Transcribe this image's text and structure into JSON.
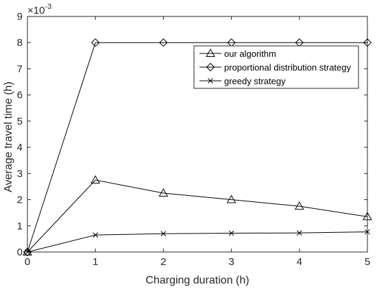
{
  "chart_data": {
    "type": "line",
    "title": "",
    "xlabel": "Charging duration (h)",
    "ylabel": "Average travel time (h)",
    "y_exponent_label": "×10",
    "y_exponent_power": "-3",
    "xlim": [
      0,
      5
    ],
    "ylim": [
      0,
      9
    ],
    "y_scale_factor": 0.001,
    "grid": false,
    "legend_position": "top-right",
    "x_ticks": [
      "0",
      "1",
      "2",
      "3",
      "4",
      "5"
    ],
    "y_ticks": [
      "0",
      "1",
      "2",
      "3",
      "4",
      "5",
      "6",
      "7",
      "8",
      "9"
    ],
    "x": [
      0,
      1,
      2,
      3,
      4,
      5
    ],
    "series": [
      {
        "name": "our algorithm",
        "marker": "triangle",
        "values": [
          0.0,
          2.75,
          2.25,
          2.0,
          1.75,
          1.35
        ]
      },
      {
        "name": "proportional distribution strategy",
        "marker": "diamond",
        "values": [
          0.0,
          8.0,
          8.0,
          8.0,
          8.0,
          8.0
        ]
      },
      {
        "name": "greedy strategy",
        "marker": "x",
        "values": [
          0.0,
          0.65,
          0.7,
          0.72,
          0.73,
          0.77
        ]
      }
    ],
    "line_color": "#000000",
    "axis_color": "#262626"
  }
}
